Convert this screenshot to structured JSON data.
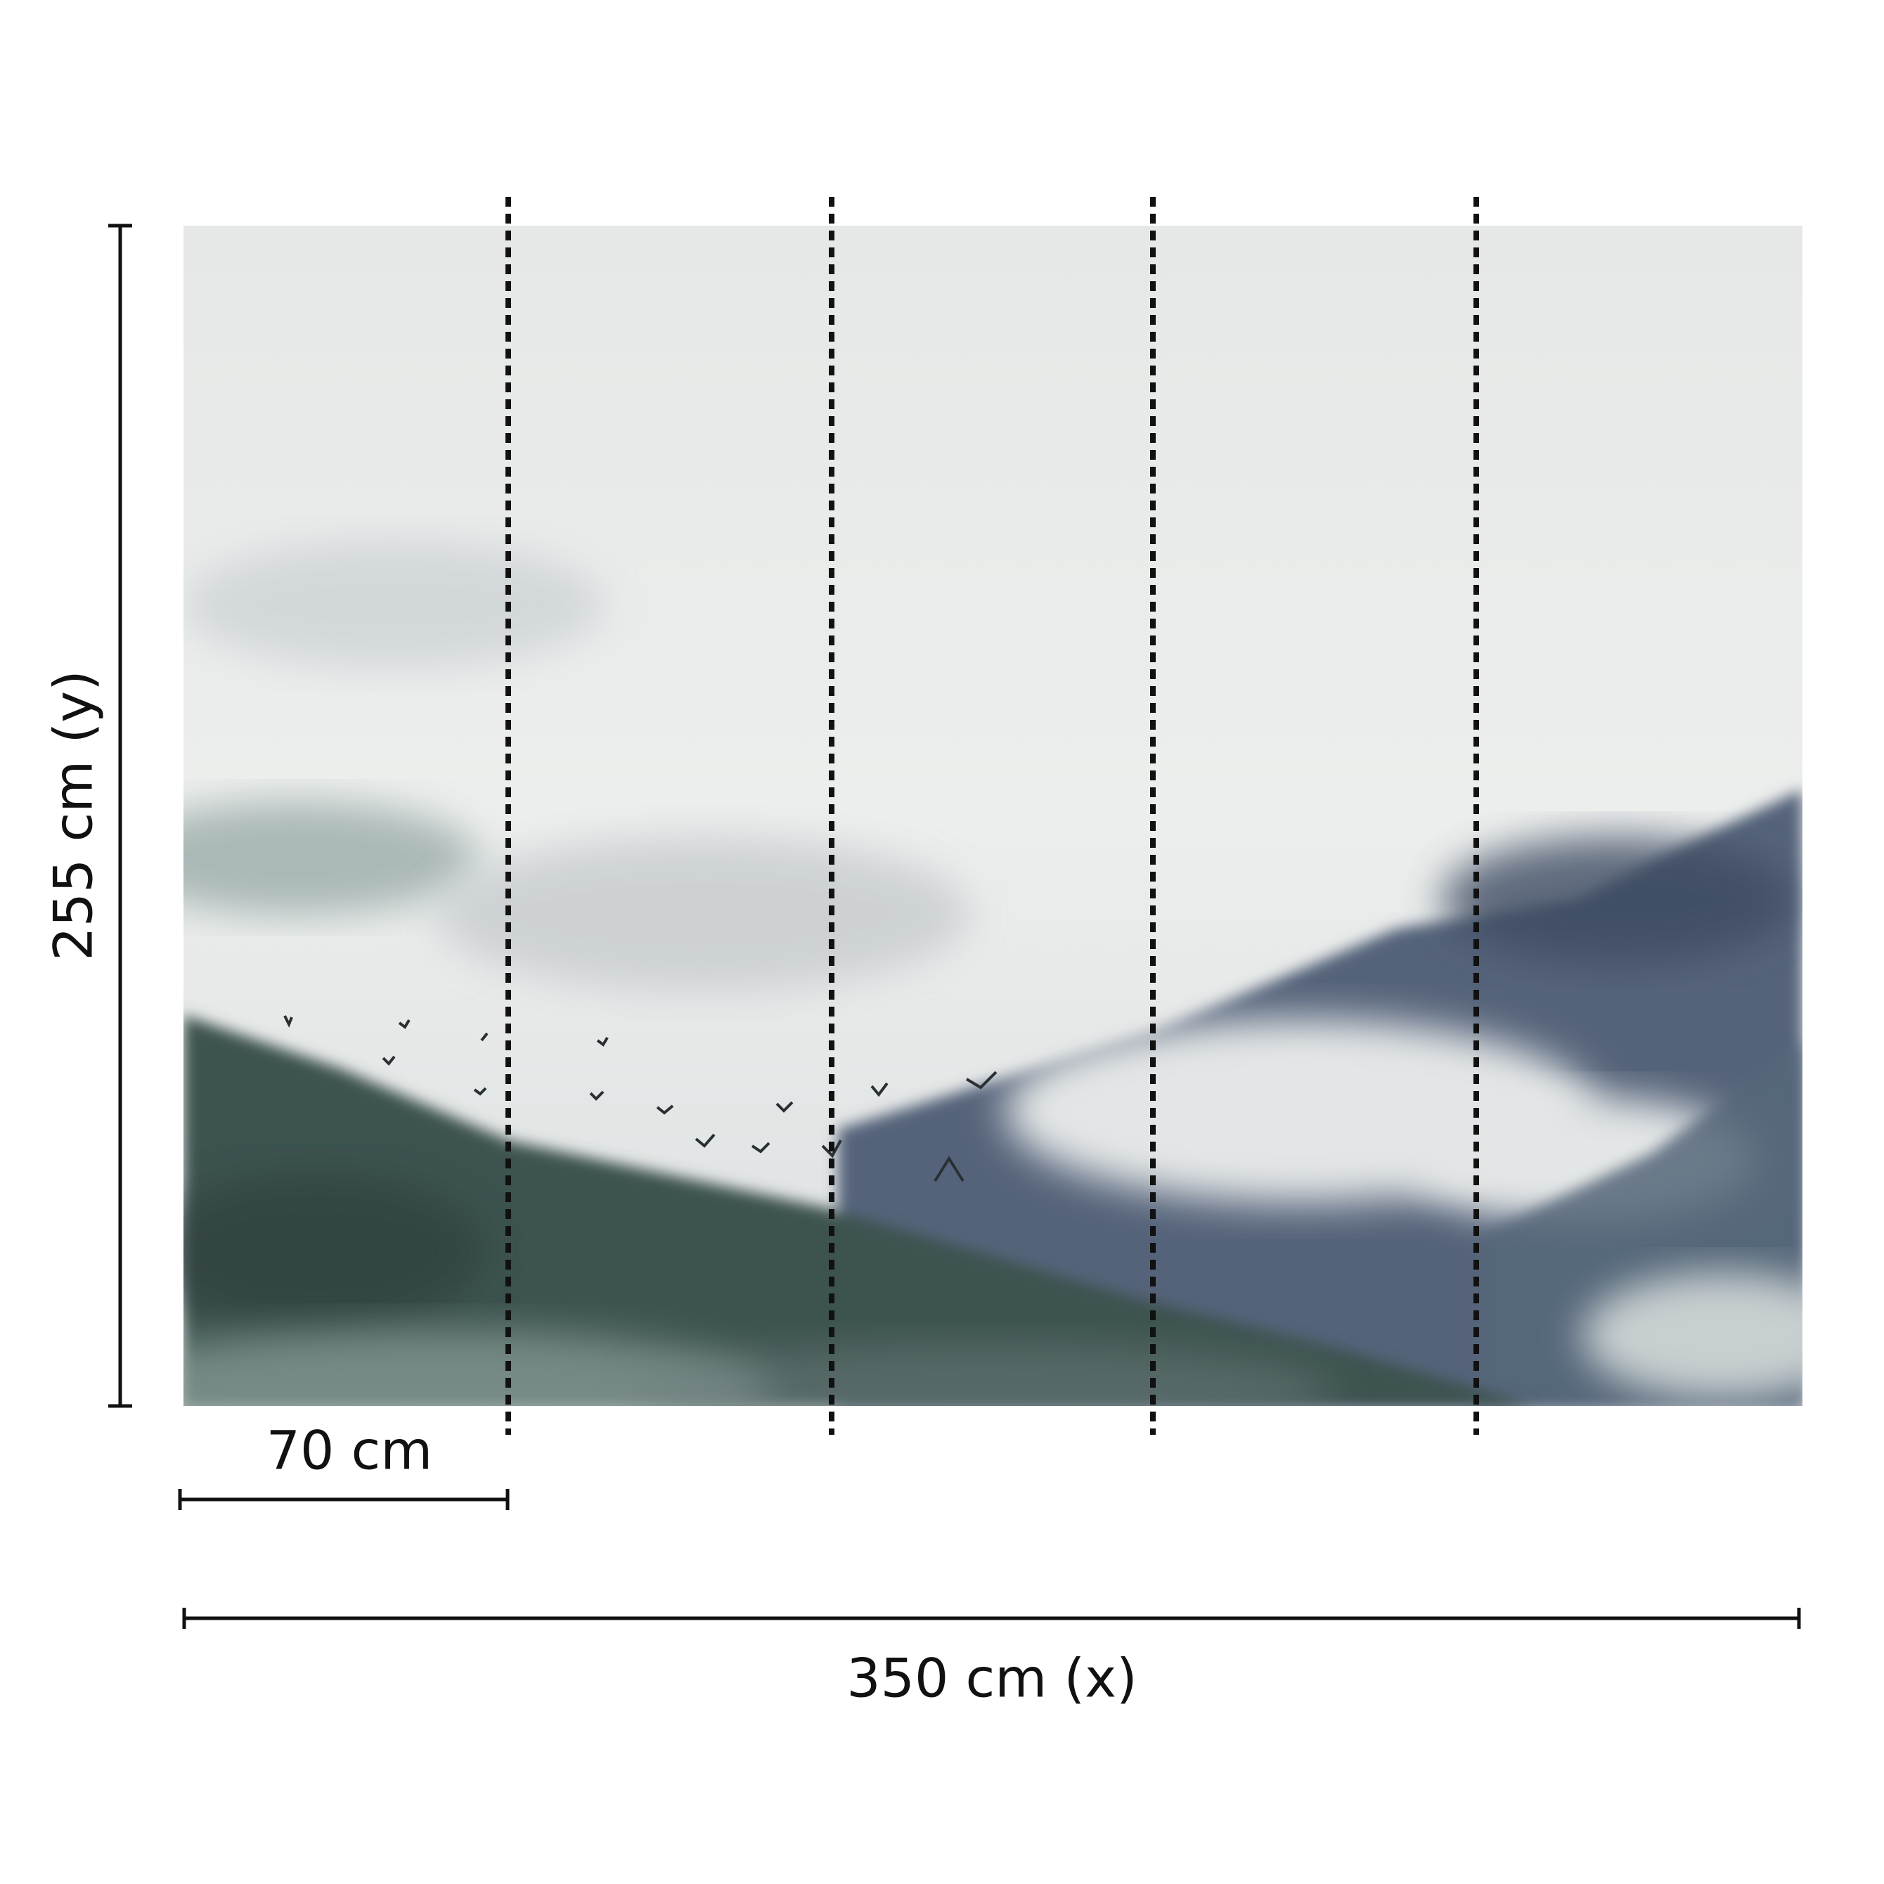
{
  "dimensions": {
    "height_label": "255 cm (y)",
    "width_label": "350 cm (x)",
    "panel_width_label": "70 cm"
  },
  "panels": {
    "count": 5,
    "divider_style": "dotted"
  },
  "image": {
    "subject": "watercolor-misty-mountains-with-birds"
  },
  "colors": {
    "background": "#ffffff",
    "sky": "#e9ebea",
    "dark_hill": "#3e5250",
    "blue_mountain": "#4b5a6b",
    "fog": "#dfe2e2",
    "lines": "#111111"
  }
}
